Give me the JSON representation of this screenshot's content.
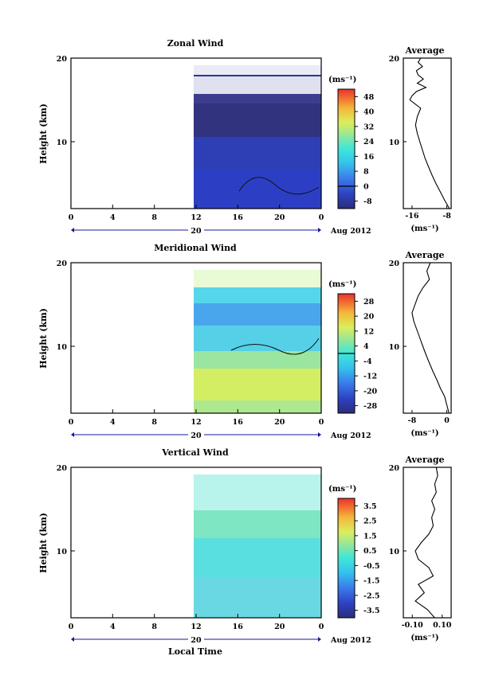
{
  "figure": {
    "xlabel": "Local Time",
    "date_label": "Aug 2012"
  },
  "chart_data": [
    {
      "type": "heatmap",
      "title": "Zonal Wind",
      "ylabel": "Height (km)",
      "ylim": [
        2,
        20
      ],
      "y_ticks": [
        10,
        20
      ],
      "x_ticks": [
        "0",
        "4",
        "8",
        "12",
        "16",
        "20",
        "0"
      ],
      "day_label": "20",
      "data_start_hour": 12,
      "colorbar": {
        "unit": "(ms⁻¹)",
        "tick_values": [
          48,
          40,
          32,
          24,
          16,
          8,
          0,
          -8
        ],
        "range": [
          -12,
          52
        ],
        "zero_line": 0
      },
      "profile": {
        "title": "Average",
        "unit": "(ms⁻¹)",
        "x_ticks": [
          "-16",
          "-8"
        ],
        "x_tick_values": [
          -16,
          -8
        ],
        "xlim": [
          -18,
          -7
        ],
        "y_ticks": [
          10,
          20
        ],
        "height": [
          2,
          3,
          4,
          5,
          6,
          7,
          8,
          9,
          10,
          11,
          12,
          13,
          14,
          15,
          15.5,
          16,
          16.5,
          17,
          17.5,
          18,
          18.5,
          19,
          19.5,
          20
        ],
        "values": [
          -7.4,
          -8.5,
          -9.5,
          -10.5,
          -11.4,
          -12.2,
          -13.0,
          -13.6,
          -14.2,
          -14.8,
          -15.2,
          -14.8,
          -14.0,
          -16.5,
          -16.0,
          -15.0,
          -12.8,
          -14.8,
          -13.4,
          -14.6,
          -15.0,
          -13.6,
          -14.6,
          -14.0
        ]
      }
    },
    {
      "type": "heatmap",
      "title": "Meridional Wind",
      "ylabel": "Height (km)",
      "ylim": [
        2,
        20
      ],
      "y_ticks": [
        10,
        20
      ],
      "x_ticks": [
        "0",
        "4",
        "8",
        "12",
        "16",
        "20",
        "0"
      ],
      "day_label": "20",
      "data_start_hour": 12,
      "colorbar": {
        "unit": "(ms⁻¹)",
        "tick_values": [
          28,
          20,
          12,
          4,
          -4,
          -12,
          -20,
          -28
        ],
        "range": [
          -32,
          32
        ],
        "zero_line": 0
      },
      "profile": {
        "title": "Average",
        "unit": "(ms⁻¹)",
        "x_ticks": [
          "-8",
          "0"
        ],
        "x_tick_values": [
          -8,
          0
        ],
        "xlim": [
          -10,
          1
        ],
        "y_ticks": [
          10,
          20
        ],
        "height": [
          2,
          3,
          4,
          5,
          6,
          7,
          8,
          9,
          10,
          11,
          12,
          13,
          14,
          15,
          16,
          17,
          18,
          19,
          20
        ],
        "values": [
          0.5,
          0.0,
          -0.5,
          -1.5,
          -2.3,
          -3.2,
          -4.0,
          -4.8,
          -5.5,
          -6.2,
          -6.9,
          -7.6,
          -8.0,
          -7.3,
          -6.6,
          -5.5,
          -4.0,
          -4.6,
          -3.8
        ]
      }
    },
    {
      "type": "heatmap",
      "title": "Vertical Wind",
      "ylabel": "Height (km)",
      "ylim": [
        2,
        20
      ],
      "y_ticks": [
        10,
        20
      ],
      "x_ticks": [
        "0",
        "4",
        "8",
        "12",
        "16",
        "20",
        "0"
      ],
      "day_label": "20",
      "data_start_hour": 12,
      "colorbar": {
        "unit": "(ms⁻¹)",
        "tick_values": [
          3.5,
          2.5,
          1.5,
          0.5,
          -0.5,
          -1.5,
          -2.5,
          -3.5
        ],
        "range": [
          -4,
          4
        ]
      },
      "profile": {
        "title": "Average",
        "unit": "(ms⁻¹)",
        "x_ticks": [
          "-0.10",
          "0.10"
        ],
        "x_tick_values": [
          -0.1,
          0.1
        ],
        "xlim": [
          -0.16,
          0.16
        ],
        "y_ticks": [
          10,
          20
        ],
        "height": [
          2,
          3,
          4,
          5,
          6,
          7,
          8,
          9,
          10,
          11,
          12,
          13,
          14,
          15,
          16,
          17,
          18,
          19,
          20
        ],
        "values": [
          0.05,
          0.0,
          -0.08,
          -0.02,
          -0.06,
          0.04,
          0.01,
          -0.06,
          -0.08,
          -0.04,
          0.01,
          0.04,
          0.03,
          0.05,
          0.03,
          0.06,
          0.05,
          0.07,
          0.06
        ]
      }
    }
  ]
}
